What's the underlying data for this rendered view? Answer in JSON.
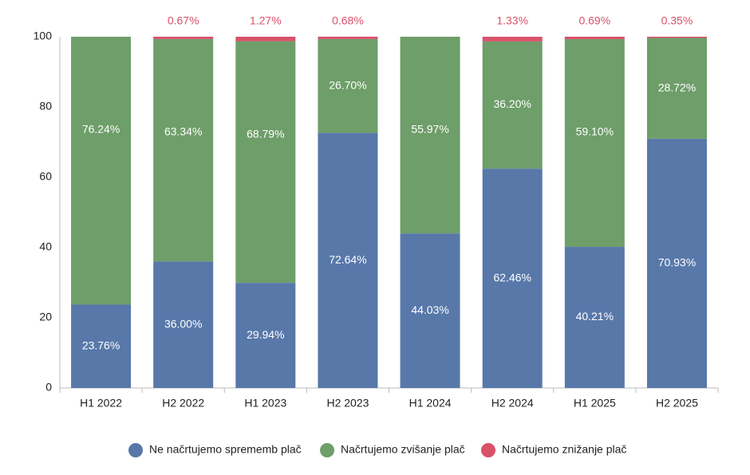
{
  "chart_data": {
    "type": "stacked_bar",
    "categories": [
      "H1 2022",
      "H2 2022",
      "H1 2023",
      "H2 2023",
      "H1 2024",
      "H2 2024",
      "H1 2025",
      "H2 2025"
    ],
    "series": [
      {
        "name": "Ne načrtujemo sprememb plač",
        "color": "#5878aa",
        "values": [
          23.76,
          36.0,
          29.94,
          72.64,
          44.03,
          62.46,
          40.21,
          70.93
        ],
        "value_labels": [
          "23.76%",
          "36.00%",
          "29.94%",
          "72.64%",
          "44.03%",
          "62.46%",
          "40.21%",
          "70.93%"
        ]
      },
      {
        "name": "Načrtujemo zvišanje plač",
        "color": "#6e9e69",
        "values": [
          76.24,
          63.34,
          68.79,
          26.7,
          55.97,
          36.2,
          59.1,
          28.72
        ],
        "value_labels": [
          "76.24%",
          "63.34%",
          "68.79%",
          "26.70%",
          "55.97%",
          "36.20%",
          "59.10%",
          "28.72%"
        ]
      },
      {
        "name": "Načrtujemo znižanje plač",
        "color": "#d9526a",
        "values": [
          null,
          0.67,
          1.27,
          0.68,
          null,
          1.33,
          0.69,
          0.35
        ],
        "value_labels": [
          null,
          "0.67%",
          "1.27%",
          "0.68%",
          null,
          "1.33%",
          "0.69%",
          "0.35%"
        ]
      }
    ],
    "ylim": [
      0,
      100
    ],
    "yticks": [
      0,
      20,
      40,
      60,
      80,
      100
    ],
    "grid": false
  }
}
